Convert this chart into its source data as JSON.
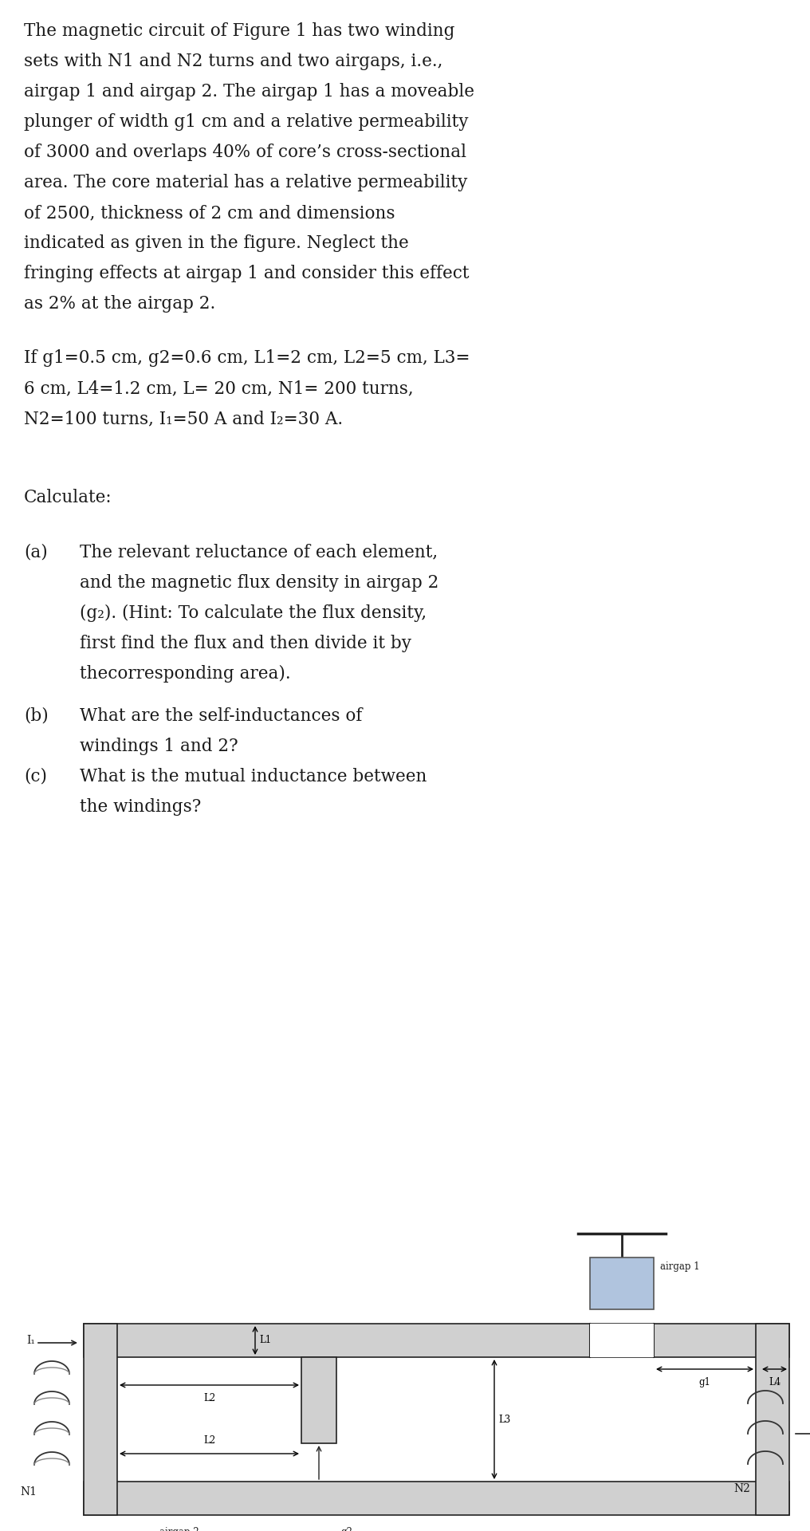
{
  "background_color": "#ffffff",
  "text_color": "#1a1a1a",
  "font_family": "DejaVu Serif",
  "font_size": 15.5,
  "font_size_small": 8.5,
  "text_lines": [
    "The magnetic circuit of Figure 1 has two winding",
    "sets with N1 and N2 turns and two airgaps, i.e.,",
    "airgap 1 and airgap 2. The airgap 1 has a moveable",
    "plunger of width g1 cm and a relative permeability",
    "of 3000 and overlaps 40% of core’s cross-sectional",
    "area. The core material has a relative permeability",
    "of 2500, thickness of 2 cm and dimensions",
    "indicated as given in the figure. Neglect the",
    "fringing effects at airgap 1 and consider this effect",
    "as 2% at the airgap 2."
  ],
  "line2": [
    "If g1=0.5 cm, g2=0.6 cm, L1=2 cm, L2=5 cm, L3=",
    "6 cm, L4=1.2 cm, L= 20 cm, N1= 200 turns,",
    "N2=100 turns, I₁=50 A and I₂=30 A."
  ],
  "line3": "Calculate:",
  "item_a1": "(a) The relevant reluctance of each element,",
  "item_a2": "    and the magnetic flux density in airgap 2",
  "item_a3": "    (g₂). (Hint: To calculate the flux density,",
  "item_a4": "    first find the flux and then divide it by",
  "item_a5": "    thecorresponding area).",
  "item_b1": "(b) What are the self-inductances of",
  "item_b2": "    windings 1 and 2?",
  "item_c1": "(c) What is the mutual inductance between",
  "item_c2": "    the windings?"
}
